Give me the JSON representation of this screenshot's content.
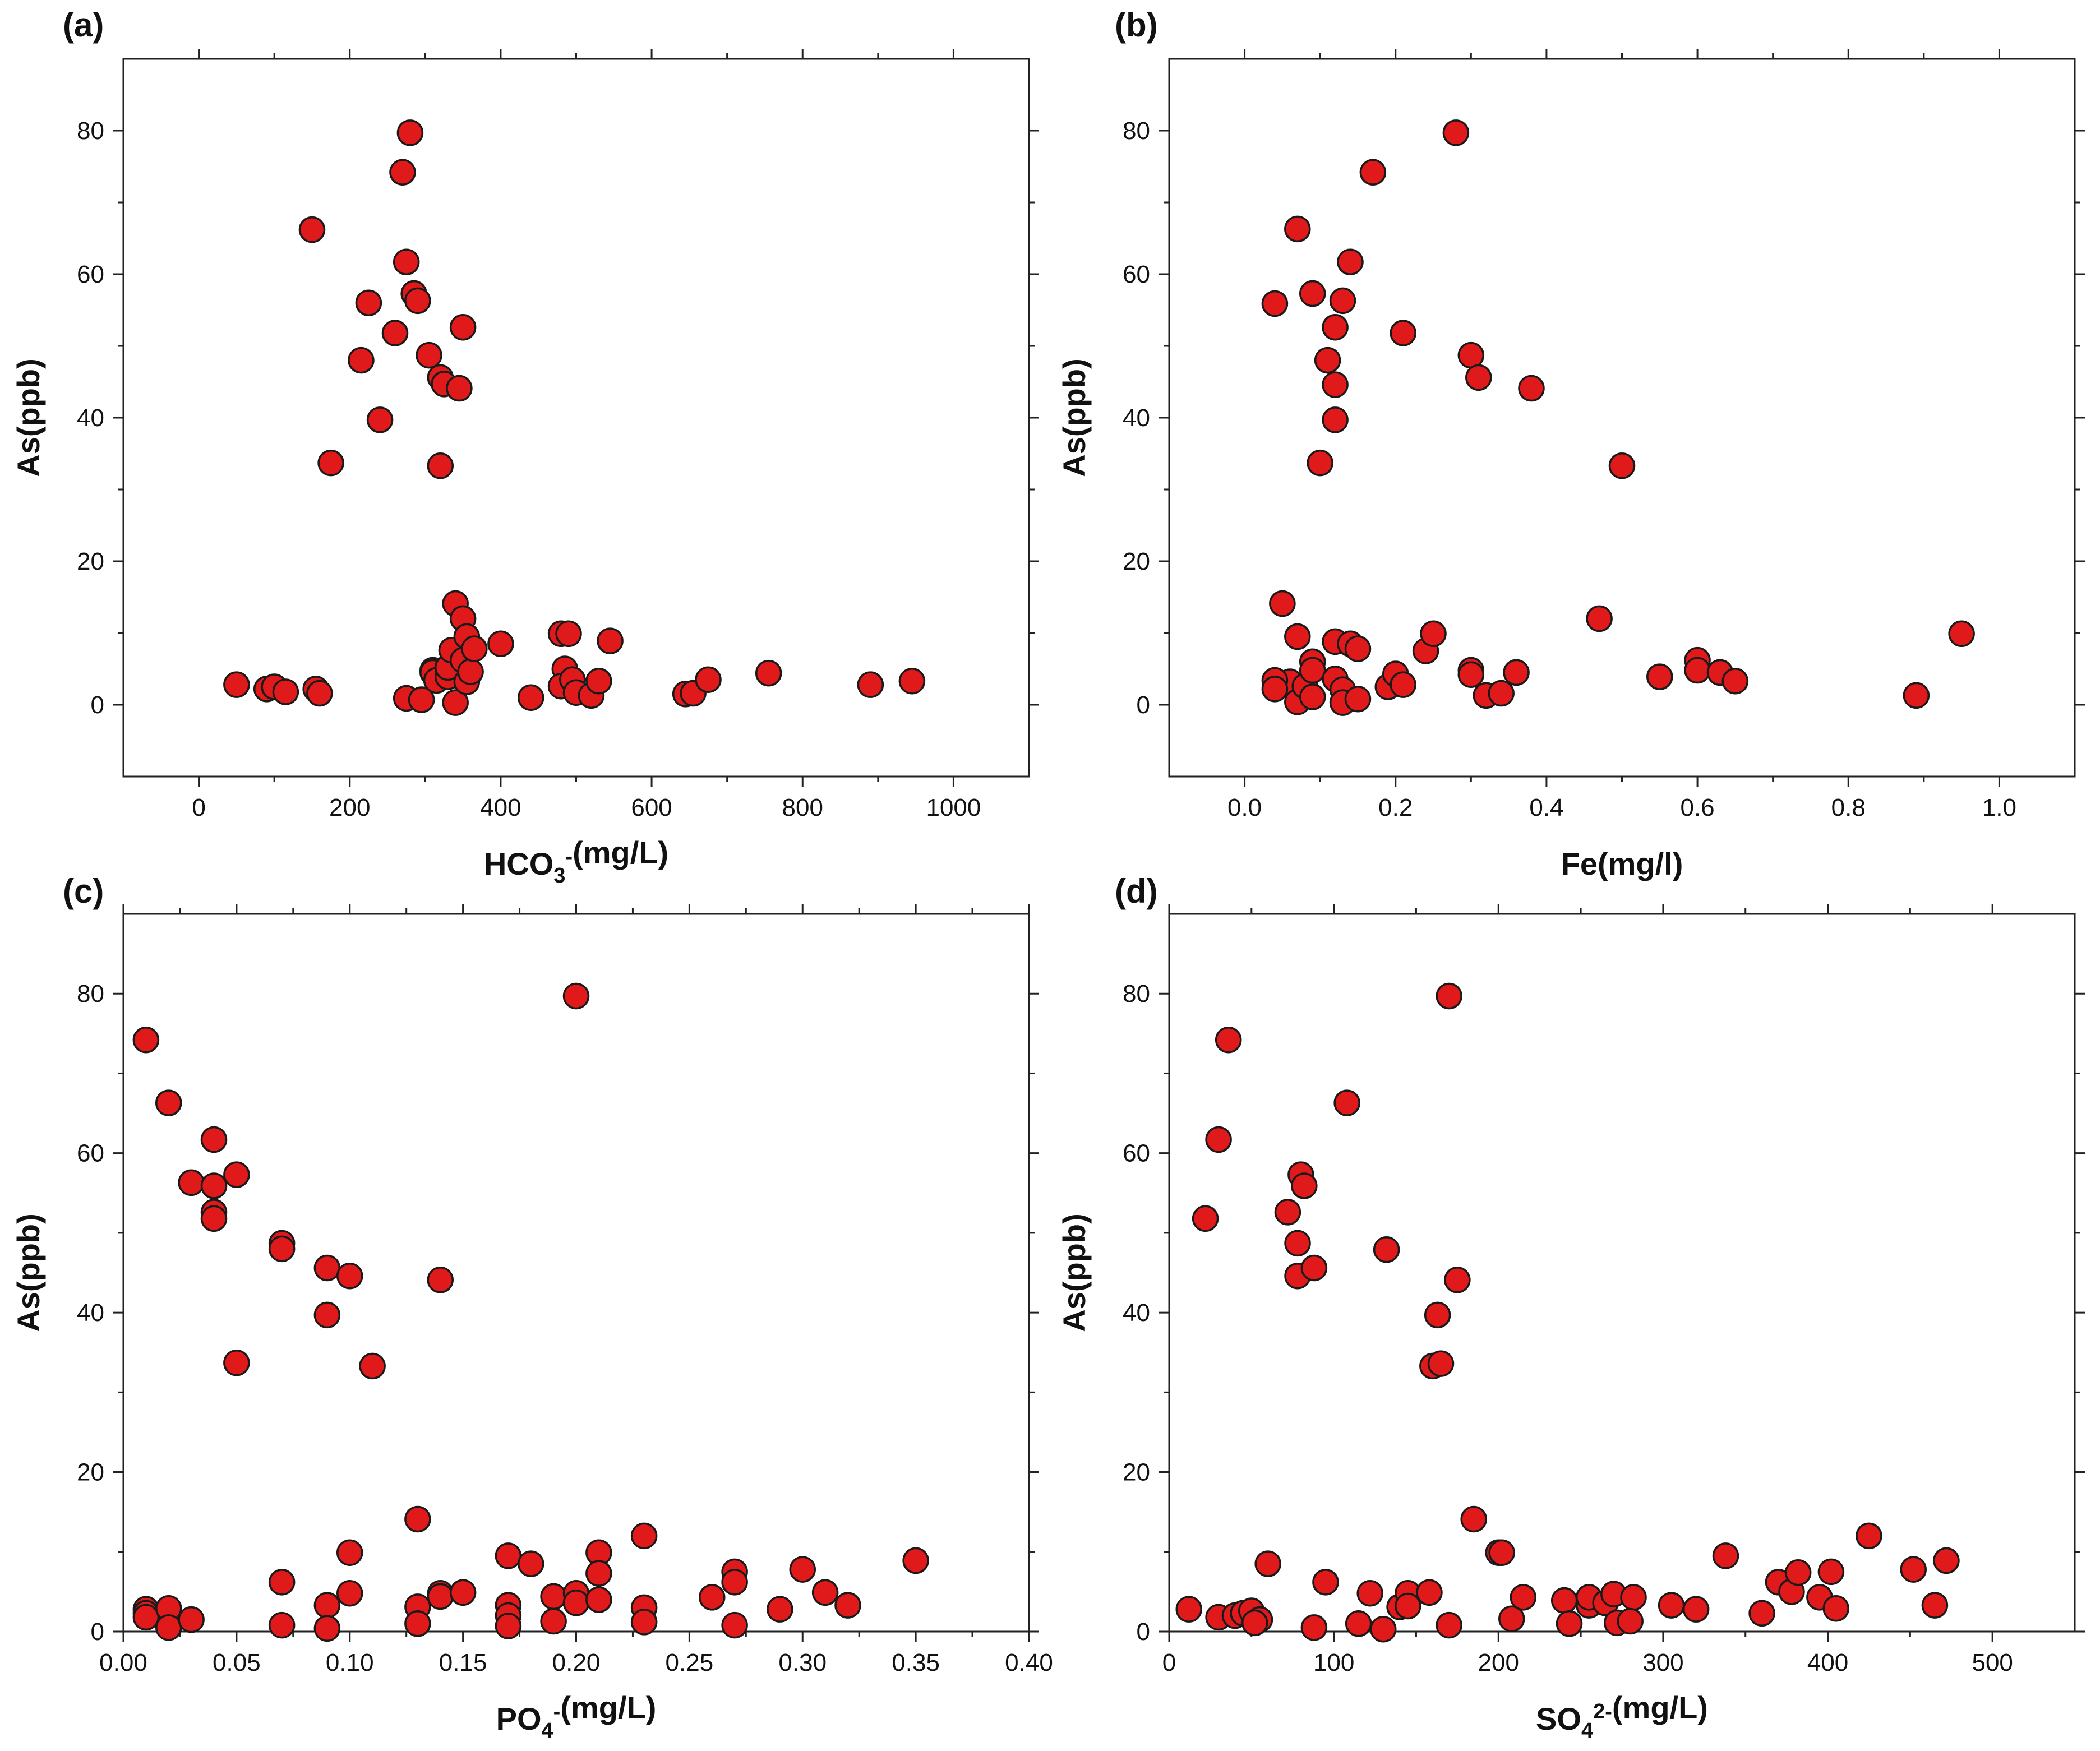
{
  "figure": {
    "marker_color": "#e01a1a",
    "marker_edge": "#1a1a1a"
  },
  "chart_data": [
    {
      "panel": "(a)",
      "type": "scatter",
      "title": "",
      "xlabel_parts": [
        {
          "t": "HCO"
        },
        {
          "t": "3",
          "sub": true
        },
        {
          "t": "-",
          "sup": true
        },
        {
          "t": "(mg/L)"
        }
      ],
      "ylabel": "As(ppb)",
      "xlim": [
        -100,
        1100
      ],
      "ylim": [
        -10,
        90
      ],
      "xticks": [
        0,
        200,
        400,
        600,
        800,
        1000
      ],
      "xtick_labels": [
        "0",
        "200",
        "400",
        "600",
        "800",
        "1000"
      ],
      "yticks": [
        0,
        20,
        40,
        60,
        80
      ],
      "ytick_labels": [
        "0",
        "20",
        "40",
        "60",
        "80"
      ],
      "points": [
        [
          50,
          2.8
        ],
        [
          90,
          2.2
        ],
        [
          100,
          2.5
        ],
        [
          115,
          1.8
        ],
        [
          155,
          2.2
        ],
        [
          160,
          1.6
        ],
        [
          150,
          66.2
        ],
        [
          175,
          33.7
        ],
        [
          215,
          48
        ],
        [
          225,
          56
        ],
        [
          240,
          39.7
        ],
        [
          260,
          51.8
        ],
        [
          270,
          74.2
        ],
        [
          275,
          61.7
        ],
        [
          280,
          79.7
        ],
        [
          285,
          57.3
        ],
        [
          290,
          56.3
        ],
        [
          275,
          0.9
        ],
        [
          295,
          0.7
        ],
        [
          305,
          48.7
        ],
        [
          310,
          4.8
        ],
        [
          310,
          4.5
        ],
        [
          315,
          3.4
        ],
        [
          320,
          33.3
        ],
        [
          320,
          45.6
        ],
        [
          325,
          44.7
        ],
        [
          330,
          3.9
        ],
        [
          330,
          5.2
        ],
        [
          335,
          7.6
        ],
        [
          340,
          14.1
        ],
        [
          345,
          44.1
        ],
        [
          350,
          52.6
        ],
        [
          350,
          12
        ],
        [
          340,
          0.3
        ],
        [
          355,
          9.5
        ],
        [
          350,
          6.2
        ],
        [
          355,
          3.2
        ],
        [
          360,
          4.6
        ],
        [
          365,
          7.8
        ],
        [
          400,
          8.5
        ],
        [
          440,
          1
        ],
        [
          480,
          9.9
        ],
        [
          490,
          9.9
        ],
        [
          485,
          5
        ],
        [
          480,
          2.6
        ],
        [
          495,
          3.5
        ],
        [
          500,
          1.7
        ],
        [
          520,
          1.3
        ],
        [
          530,
          3.3
        ],
        [
          545,
          8.9
        ],
        [
          645,
          1.5
        ],
        [
          655,
          1.6
        ],
        [
          675,
          3.5
        ],
        [
          755,
          4.4
        ],
        [
          890,
          2.8
        ],
        [
          945,
          3.3
        ]
      ]
    },
    {
      "panel": "(b)",
      "type": "scatter",
      "title": "",
      "xlabel_parts": [
        {
          "t": "Fe(mg/l)"
        }
      ],
      "ylabel": "As(ppb)",
      "xlim": [
        -0.1,
        1.1
      ],
      "ylim": [
        -10,
        90
      ],
      "xticks": [
        0,
        0.2,
        0.4,
        0.6,
        0.8,
        1.0
      ],
      "xtick_labels": [
        "0.0",
        "0.2",
        "0.4",
        "0.6",
        "0.8",
        "1.0"
      ],
      "yticks": [
        0,
        20,
        40,
        60,
        80
      ],
      "ytick_labels": [
        "0",
        "20",
        "40",
        "60",
        "80"
      ],
      "points": [
        [
          0.04,
          55.9
        ],
        [
          0.05,
          14.1
        ],
        [
          0.07,
          66.3
        ],
        [
          0.07,
          9.5
        ],
        [
          0.06,
          3.2
        ],
        [
          0.04,
          3.4
        ],
        [
          0.04,
          2.2
        ],
        [
          0.07,
          0.4
        ],
        [
          0.08,
          2.6
        ],
        [
          0.09,
          57.3
        ],
        [
          0.09,
          6
        ],
        [
          0.09,
          4.8
        ],
        [
          0.09,
          1.1
        ],
        [
          0.1,
          33.7
        ],
        [
          0.11,
          48
        ],
        [
          0.12,
          52.6
        ],
        [
          0.12,
          44.6
        ],
        [
          0.12,
          39.7
        ],
        [
          0.13,
          56.3
        ],
        [
          0.12,
          8.8
        ],
        [
          0.12,
          3.6
        ],
        [
          0.13,
          2.1
        ],
        [
          0.13,
          0.3
        ],
        [
          0.14,
          61.7
        ],
        [
          0.14,
          8.5
        ],
        [
          0.15,
          7.8
        ],
        [
          0.15,
          0.8
        ],
        [
          0.17,
          74.2
        ],
        [
          0.19,
          2.5
        ],
        [
          0.2,
          4.3
        ],
        [
          0.21,
          51.8
        ],
        [
          0.21,
          2.8
        ],
        [
          0.24,
          7.5
        ],
        [
          0.25,
          9.9
        ],
        [
          0.28,
          79.7
        ],
        [
          0.3,
          48.7
        ],
        [
          0.3,
          4.8
        ],
        [
          0.3,
          4.2
        ],
        [
          0.31,
          45.6
        ],
        [
          0.32,
          1.3
        ],
        [
          0.34,
          1.6
        ],
        [
          0.36,
          4.5
        ],
        [
          0.38,
          44.1
        ],
        [
          0.47,
          12
        ],
        [
          0.5,
          33.3
        ],
        [
          0.55,
          3.9
        ],
        [
          0.6,
          6.2
        ],
        [
          0.6,
          4.8
        ],
        [
          0.63,
          4.5
        ],
        [
          0.65,
          3.3
        ],
        [
          0.89,
          1.3
        ],
        [
          0.95,
          9.9
        ]
      ]
    },
    {
      "panel": "(c)",
      "type": "scatter",
      "title": "",
      "xlabel_parts": [
        {
          "t": "PO"
        },
        {
          "t": "4",
          "sub": true
        },
        {
          "t": "-",
          "sup": true
        },
        {
          "t": "(mg/L)"
        }
      ],
      "ylabel": "As(ppb)",
      "xlim": [
        0.0,
        0.4
      ],
      "ylim": [
        0,
        90
      ],
      "xticks": [
        0.0,
        0.05,
        0.1,
        0.15,
        0.2,
        0.25,
        0.3,
        0.35,
        0.4
      ],
      "xtick_labels": [
        "0.00",
        "0.05",
        "0.10",
        "0.15",
        "0.20",
        "0.25",
        "0.30",
        "0.35",
        "0.40"
      ],
      "yticks": [
        0,
        20,
        40,
        60,
        80
      ],
      "ytick_labels": [
        "0",
        "20",
        "40",
        "60",
        "80"
      ],
      "points": [
        [
          0.01,
          74.2
        ],
        [
          0.01,
          2.8
        ],
        [
          0.01,
          2.3
        ],
        [
          0.01,
          1.8
        ],
        [
          0.02,
          66.3
        ],
        [
          0.02,
          2.9
        ],
        [
          0.02,
          0.5
        ],
        [
          0.03,
          56.3
        ],
        [
          0.03,
          1.5
        ],
        [
          0.04,
          61.7
        ],
        [
          0.04,
          55.9
        ],
        [
          0.04,
          52.6
        ],
        [
          0.04,
          51.8
        ],
        [
          0.05,
          57.3
        ],
        [
          0.05,
          33.7
        ],
        [
          0.07,
          48.7
        ],
        [
          0.07,
          48
        ],
        [
          0.07,
          6.2
        ],
        [
          0.07,
          0.8
        ],
        [
          0.09,
          45.6
        ],
        [
          0.09,
          39.7
        ],
        [
          0.09,
          3.3
        ],
        [
          0.09,
          0.4
        ],
        [
          0.1,
          44.6
        ],
        [
          0.1,
          9.9
        ],
        [
          0.1,
          4.8
        ],
        [
          0.11,
          33.3
        ],
        [
          0.13,
          14.1
        ],
        [
          0.13,
          3.1
        ],
        [
          0.13,
          1
        ],
        [
          0.14,
          44.1
        ],
        [
          0.14,
          4.8
        ],
        [
          0.14,
          4.4
        ],
        [
          0.15,
          4.9
        ],
        [
          0.17,
          9.5
        ],
        [
          0.17,
          3.3
        ],
        [
          0.17,
          2
        ],
        [
          0.17,
          0.7
        ],
        [
          0.18,
          8.5
        ],
        [
          0.19,
          4.4
        ],
        [
          0.19,
          1.3
        ],
        [
          0.2,
          79.7
        ],
        [
          0.2,
          4.8
        ],
        [
          0.2,
          3.6
        ],
        [
          0.21,
          9.9
        ],
        [
          0.21,
          7.3
        ],
        [
          0.21,
          4
        ],
        [
          0.23,
          12
        ],
        [
          0.23,
          3
        ],
        [
          0.23,
          1.2
        ],
        [
          0.26,
          4.3
        ],
        [
          0.27,
          7.5
        ],
        [
          0.27,
          6.2
        ],
        [
          0.27,
          0.8
        ],
        [
          0.29,
          2.8
        ],
        [
          0.3,
          7.8
        ],
        [
          0.31,
          4.9
        ],
        [
          0.32,
          3.3
        ],
        [
          0.35,
          8.9
        ]
      ]
    },
    {
      "panel": "(d)",
      "type": "scatter",
      "title": "",
      "xlabel_parts": [
        {
          "t": "SO"
        },
        {
          "t": "4",
          "sub": true
        },
        {
          "t": "2-",
          "sup": true
        },
        {
          "t": "(mg/L)"
        }
      ],
      "ylabel": "As(ppb)",
      "xlim": [
        0,
        550
      ],
      "ylim": [
        0,
        90
      ],
      "xticks": [
        0,
        100,
        200,
        300,
        400,
        500
      ],
      "xtick_labels": [
        "0",
        "100",
        "200",
        "300",
        "400",
        "500"
      ],
      "yticks": [
        0,
        20,
        40,
        60,
        80
      ],
      "ytick_labels": [
        "0",
        "20",
        "40",
        "60",
        "80"
      ],
      "points": [
        [
          12,
          2.8
        ],
        [
          22,
          51.8
        ],
        [
          30,
          61.7
        ],
        [
          36,
          74.2
        ],
        [
          30,
          1.8
        ],
        [
          40,
          2
        ],
        [
          45,
          2.3
        ],
        [
          50,
          2.6
        ],
        [
          55,
          1.5
        ],
        [
          52,
          1.1
        ],
        [
          60,
          8.5
        ],
        [
          72,
          52.6
        ],
        [
          78,
          48.7
        ],
        [
          80,
          57.3
        ],
        [
          82,
          55.9
        ],
        [
          78,
          44.6
        ],
        [
          88,
          45.6
        ],
        [
          88,
          0.5
        ],
        [
          95,
          6.2
        ],
        [
          108,
          66.3
        ],
        [
          115,
          1
        ],
        [
          122,
          4.8
        ],
        [
          130,
          0.3
        ],
        [
          132,
          47.9
        ],
        [
          140,
          3.1
        ],
        [
          145,
          4.8
        ],
        [
          145,
          3.2
        ],
        [
          158,
          4.9
        ],
        [
          160,
          33.3
        ],
        [
          163,
          39.7
        ],
        [
          165,
          33.6
        ],
        [
          170,
          79.7
        ],
        [
          170,
          0.8
        ],
        [
          175,
          44.1
        ],
        [
          185,
          14.1
        ],
        [
          200,
          9.9
        ],
        [
          202,
          9.9
        ],
        [
          208,
          1.6
        ],
        [
          215,
          4.3
        ],
        [
          240,
          3.9
        ],
        [
          243,
          1
        ],
        [
          255,
          3.3
        ],
        [
          255,
          4.3
        ],
        [
          265,
          3.6
        ],
        [
          270,
          4.7
        ],
        [
          272,
          1.1
        ],
        [
          282,
          4.3
        ],
        [
          280,
          1.3
        ],
        [
          305,
          3.3
        ],
        [
          320,
          2.8
        ],
        [
          338,
          9.5
        ],
        [
          360,
          2.3
        ],
        [
          370,
          6.2
        ],
        [
          378,
          5
        ],
        [
          382,
          7.4
        ],
        [
          395,
          4.3
        ],
        [
          402,
          7.5
        ],
        [
          405,
          2.9
        ],
        [
          425,
          12
        ],
        [
          452,
          7.8
        ],
        [
          465,
          3.3
        ],
        [
          472,
          8.9
        ]
      ]
    }
  ]
}
